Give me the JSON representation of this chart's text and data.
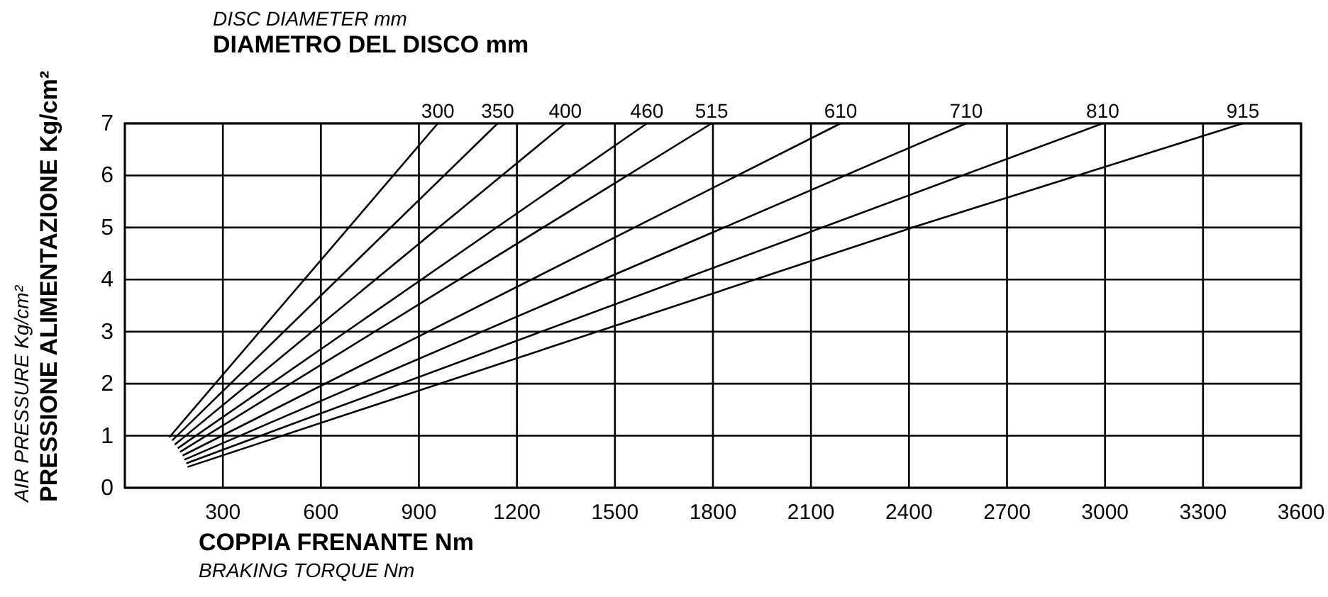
{
  "chart_data": {
    "type": "line",
    "title": "DISC DIAMETER mm\nDIAMETRO DEL DISCO mm",
    "xlabel": "COPPIA FRENANTE Nm\nBRAKING TORQUE Nm",
    "ylabel": "AIR PRESSURE Kg/cm²\nPRESSIONE ALIMENTAZIONE Kg/cm²",
    "xlim": [
      0,
      3600
    ],
    "xticks": [
      300,
      600,
      900,
      1200,
      1500,
      1800,
      2100,
      2400,
      2700,
      3000,
      3300,
      3600
    ],
    "ylim": [
      0,
      7
    ],
    "yticks": [
      0,
      1,
      2,
      3,
      4,
      5,
      6,
      7
    ],
    "grid": true,
    "marker": "none",
    "line_style": "solid",
    "series": [
      {
        "name": "300",
        "color": "#000000",
        "x": [
          136,
          958
        ],
        "values": [
          0.97,
          7
        ]
      },
      {
        "name": "350",
        "color": "#000000",
        "x": [
          145,
          1141
        ],
        "values": [
          0.91,
          7
        ]
      },
      {
        "name": "400",
        "color": "#000000",
        "x": [
          153,
          1348
        ],
        "values": [
          0.83,
          7
        ]
      },
      {
        "name": "460",
        "color": "#000000",
        "x": [
          162,
          1598
        ],
        "values": [
          0.76,
          7
        ]
      },
      {
        "name": "515",
        "color": "#000000",
        "x": [
          169,
          1796
        ],
        "values": [
          0.69,
          7
        ]
      },
      {
        "name": "610",
        "color": "#000000",
        "x": [
          177,
          2191
        ],
        "values": [
          0.62,
          7
        ]
      },
      {
        "name": "710",
        "color": "#000000",
        "x": [
          182,
          2575
        ],
        "values": [
          0.54,
          7
        ]
      },
      {
        "name": "810",
        "color": "#000000",
        "x": [
          188,
          2993
        ],
        "values": [
          0.47,
          7
        ]
      },
      {
        "name": "915",
        "color": "#000000",
        "x": [
          192,
          2411,
          3422
        ],
        "values": [
          0.4,
          5,
          7
        ]
      }
    ]
  }
}
